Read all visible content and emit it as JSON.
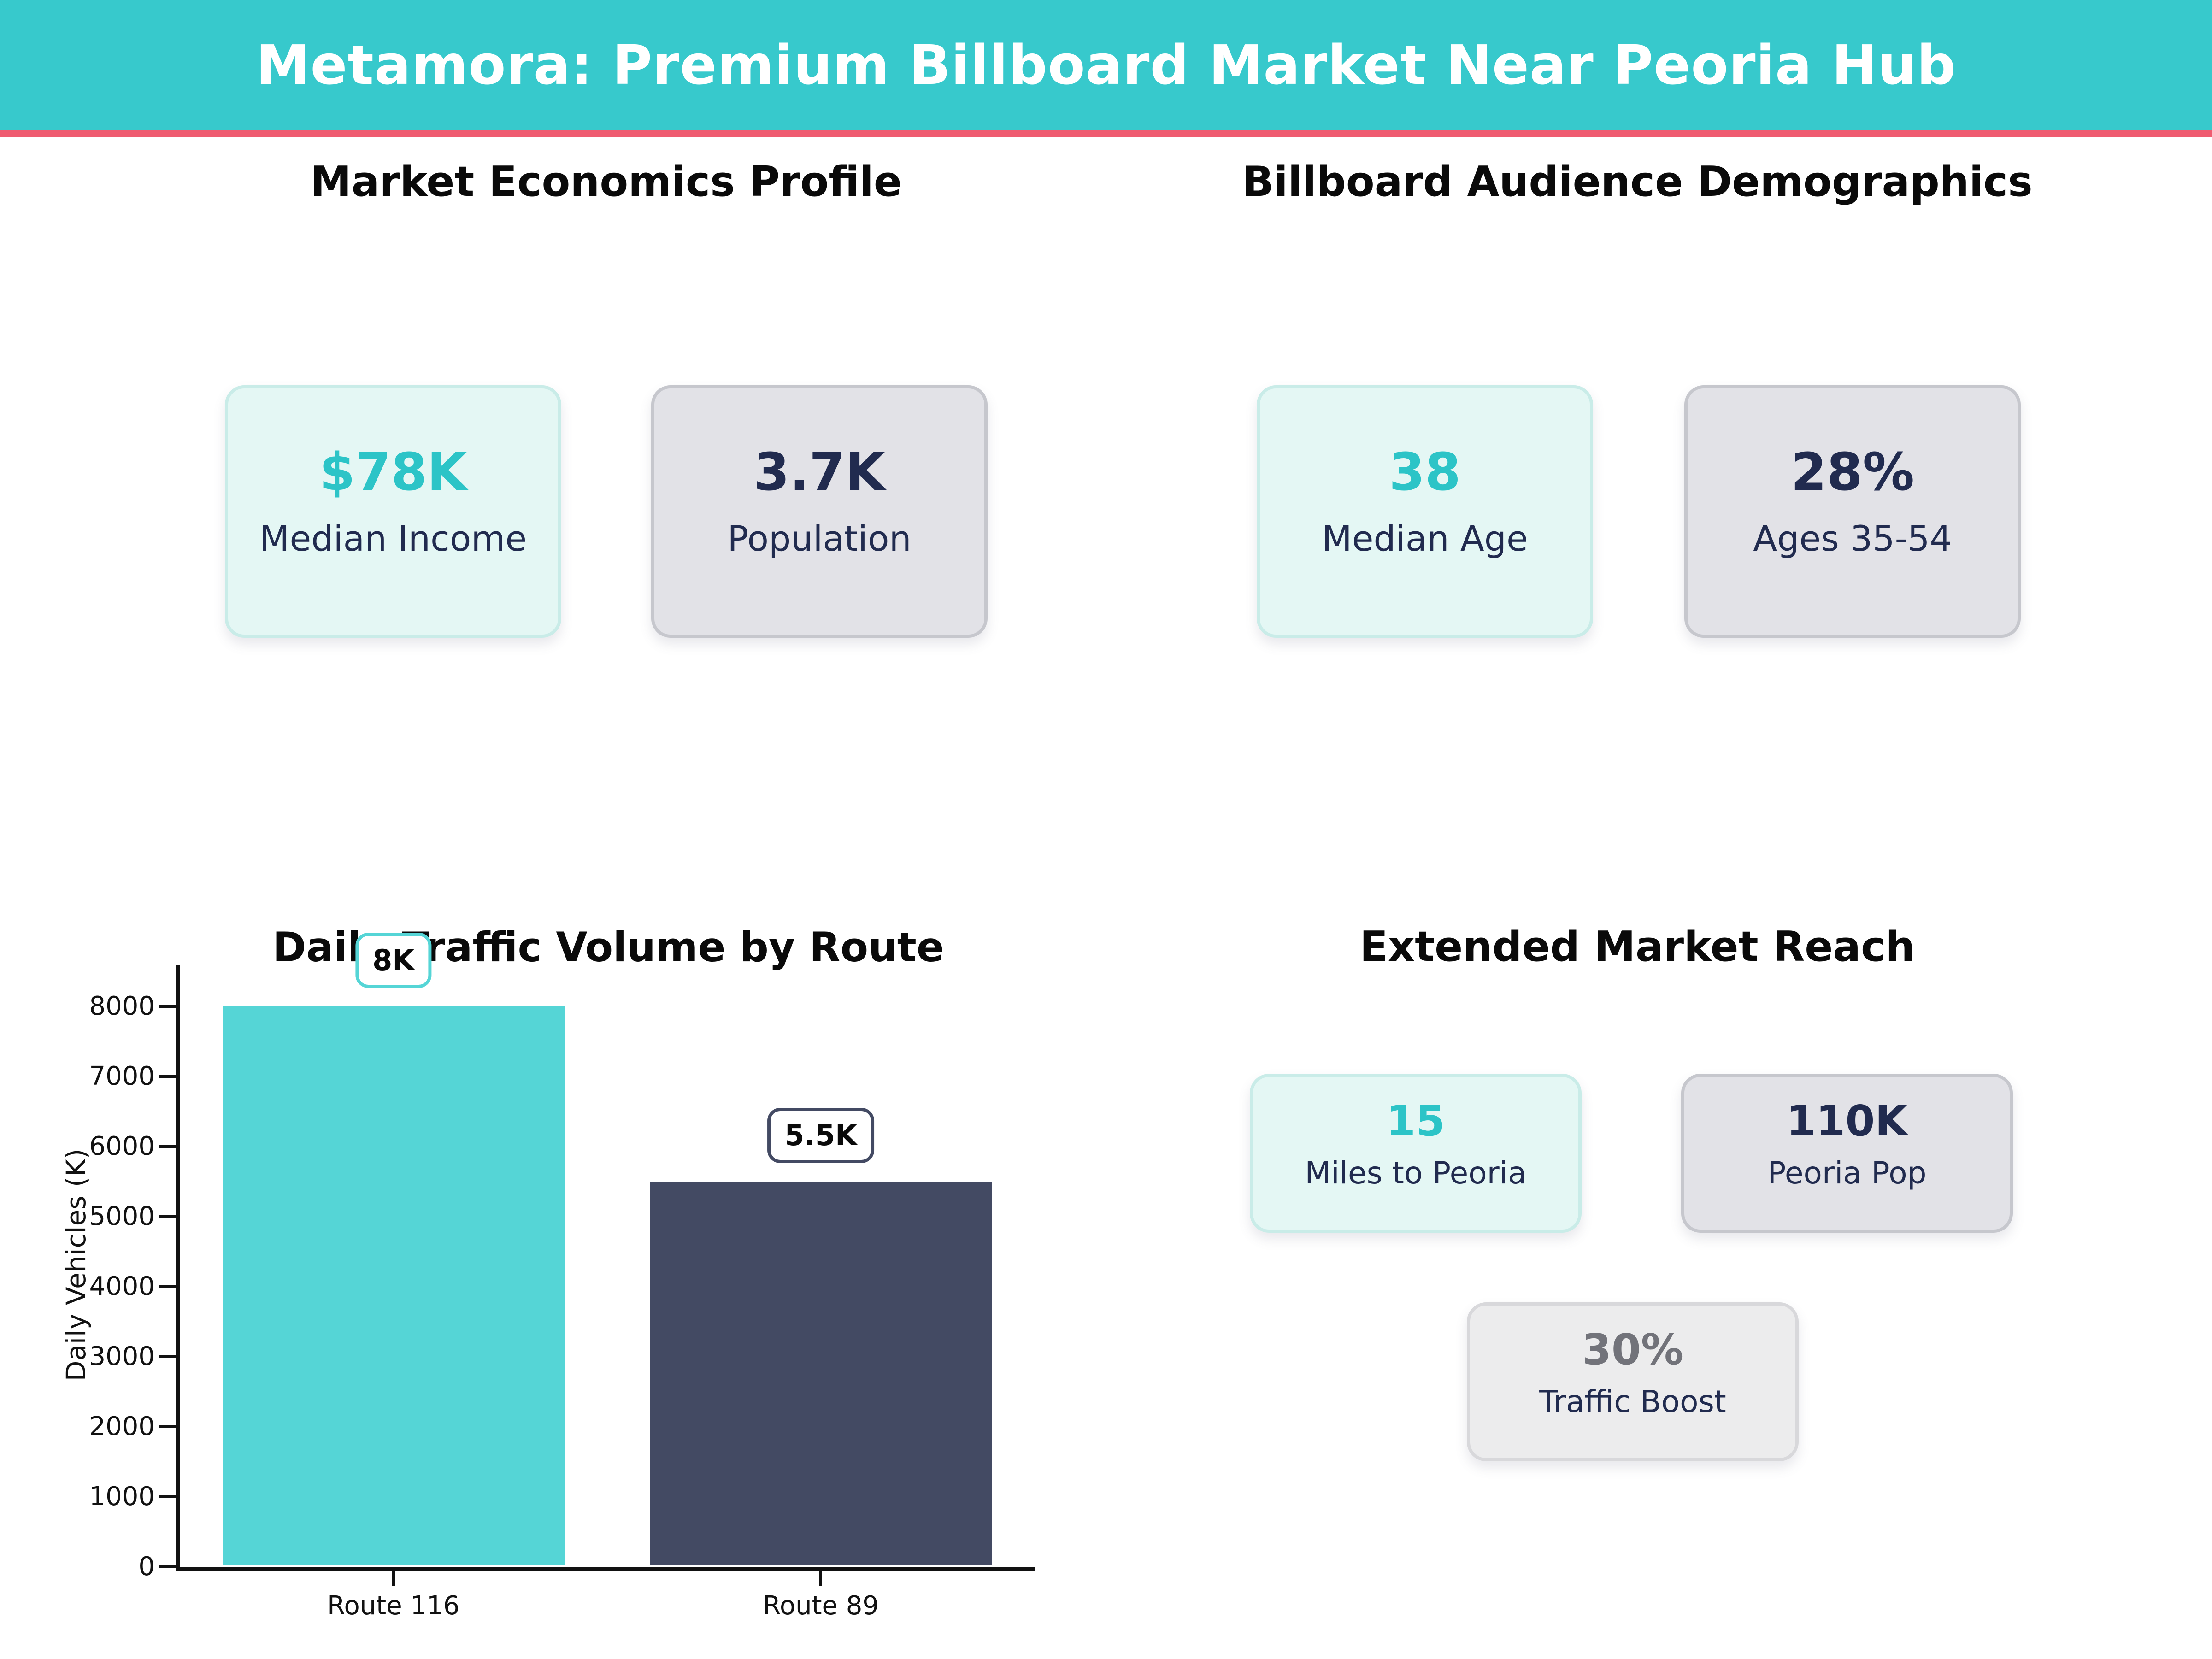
{
  "header": {
    "title": "Metamora: Premium Billboard Market Near Peoria Hub",
    "bg_color": "#37c9cc",
    "accent_color": "#ef5b70"
  },
  "colors": {
    "teal_value_text": "#2cc4c7",
    "navy_text": "#212b4f",
    "muted_value_text": "#72737a",
    "mint_card_bg": "#e4f7f4",
    "mint_card_border": "#c9ece8",
    "gray_card_bg": "#e2e2e7",
    "gray_card_border": "#c6c7cd",
    "muted_card_bg": "#ececed",
    "muted_card_border": "#d8d8db"
  },
  "sections": {
    "economics": {
      "title": "Market Economics Profile",
      "cards": [
        {
          "value": "$78K",
          "label": "Median Income",
          "variant": "teal"
        },
        {
          "value": "3.7K",
          "label": "Population",
          "variant": "gray"
        }
      ]
    },
    "demographics": {
      "title": "Billboard Audience Demographics",
      "cards": [
        {
          "value": "38",
          "label": "Median Age",
          "variant": "teal"
        },
        {
          "value": "28%",
          "label": "Ages 35-54",
          "variant": "gray"
        }
      ]
    },
    "reach": {
      "title": "Extended Market Reach",
      "cards": [
        {
          "value": "15",
          "label": "Miles to Peoria",
          "variant": "teal"
        },
        {
          "value": "110K",
          "label": "Peoria Pop",
          "variant": "gray"
        },
        {
          "value": "30%",
          "label": "Traffic Boost",
          "variant": "muted"
        }
      ]
    }
  },
  "chart_data": {
    "type": "bar",
    "title": "Daily Traffic Volume by Route",
    "categories": [
      "Route 116",
      "Route 89"
    ],
    "values": [
      8000,
      5500
    ],
    "bar_labels": [
      "8K",
      "5.5K"
    ],
    "bar_colors": [
      "#55d5d6",
      "#434a63"
    ],
    "ylabel": "Daily Vehicles (K)",
    "ylim": [
      0,
      8600
    ],
    "yticks": [
      0,
      1000,
      2000,
      3000,
      4000,
      5000,
      6000,
      7000,
      8000
    ],
    "grid": false,
    "legend": "none",
    "annotation_style": "rounded-box"
  }
}
